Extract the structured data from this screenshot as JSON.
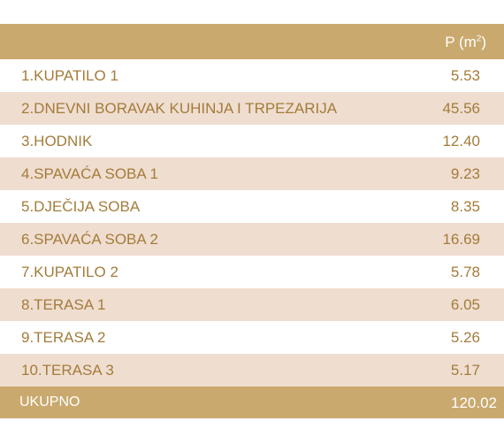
{
  "header": {
    "area_label": "P (m",
    "area_superscript": "2",
    "area_suffix": ")"
  },
  "rows": [
    {
      "name": "1.KUPATILO 1",
      "value": "5.53"
    },
    {
      "name": "2.DNEVNI BORAVAK KUHINJA I TRPEZARIJA",
      "value": "45.56"
    },
    {
      "name": "3.HODNIK",
      "value": "12.40"
    },
    {
      "name": "4.SPAVAĆA SOBA 1",
      "value": "9.23"
    },
    {
      "name": "5.DJEČIJA SOBA",
      "value": "8.35"
    },
    {
      "name": "6.SPAVAĆA SOBA 2",
      "value": "16.69"
    },
    {
      "name": "7.KUPATILO 2",
      "value": "5.78"
    },
    {
      "name": "8.TERASA 1",
      "value": "6.05"
    },
    {
      "name": "9.TERASA 2",
      "value": "5.26"
    },
    {
      "name": "10.TERASA 3",
      "value": "5.17"
    }
  ],
  "total": {
    "name": "UKUPNO",
    "value": "120.02"
  },
  "colors": {
    "header_bg": "#c9a96e",
    "stripe_bg": "#efddd0",
    "text": "#a47c3a"
  }
}
